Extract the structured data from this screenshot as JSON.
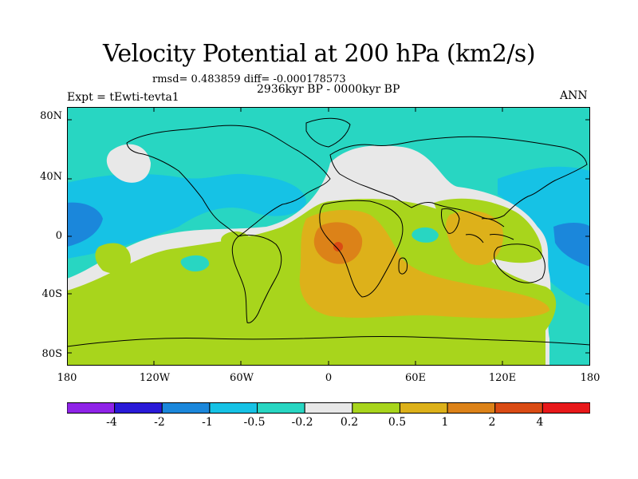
{
  "title": "Velocity Potential at 200 hPa (km2/s)",
  "stats": "rmsd= 0.483859 diff= -0.000178573",
  "period": "2936kyr BP - 0000kyr BP",
  "experiment": "Expt = tEwti-tevta1",
  "season": "ANN",
  "lat_ticks": [
    "80N",
    "40N",
    "0",
    "40S",
    "80S"
  ],
  "lon_ticks": [
    "180",
    "120W",
    "60W",
    "0",
    "60E",
    "120E",
    "180"
  ],
  "colorbar": {
    "labels": [
      "-4",
      "-2",
      "-1",
      "-0.5",
      "-0.2",
      "0.2",
      "0.5",
      "1",
      "2",
      "4"
    ],
    "colors": [
      "#8f23e8",
      "#2a1ad8",
      "#1b87db",
      "#16c2e5",
      "#28d6c2",
      "#e8e8e8",
      "#a8d51c",
      "#ddb11a",
      "#dc8218",
      "#da4b14",
      "#e8181a"
    ]
  },
  "regions": [
    {
      "name": "neg-0.2-to-0.5",
      "level": "-0.5 to -0.2"
    },
    {
      "name": "neutral",
      "level": "-0.2 to 0.2"
    },
    {
      "name": "pos-0.2-to-0.5",
      "level": "0.2 to 0.5"
    },
    {
      "name": "pos-0.5-to-1",
      "level": "0.5 to 1"
    },
    {
      "name": "pos-1-to-2",
      "level": "1 to 2"
    },
    {
      "name": "pos-2-to-4",
      "level": "2 to 4"
    },
    {
      "name": "neg-0.5-to-1",
      "level": "-1 to -0.5"
    },
    {
      "name": "neg-1-to-2",
      "level": "-2 to -1"
    }
  ]
}
